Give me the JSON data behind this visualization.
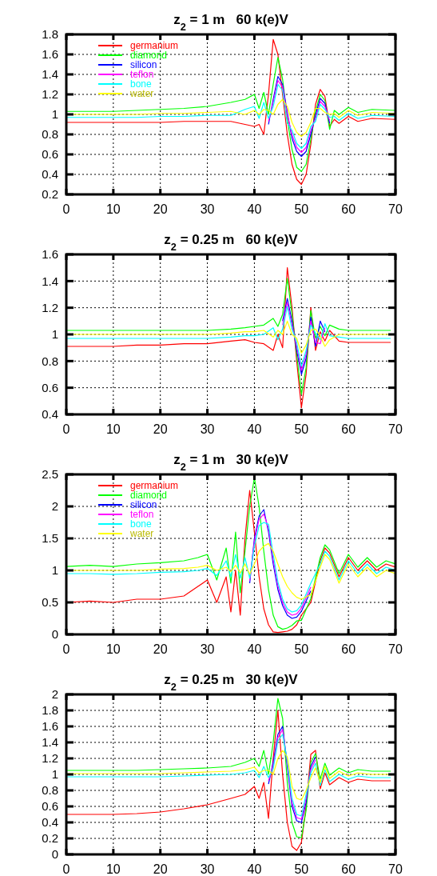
{
  "chart_data": [
    {
      "type": "line",
      "title": "z$_{2}$ = 1 m   60 k(e)V",
      "legend": "top left",
      "grid": true,
      "x": [
        0,
        5,
        10,
        15,
        20,
        25,
        30,
        35,
        38,
        40,
        41,
        42,
        43,
        44,
        45,
        46,
        47,
        48,
        49,
        50,
        51,
        52,
        53,
        54,
        55,
        56,
        57,
        58,
        60,
        62,
        65,
        70
      ],
      "xlim": [
        0,
        70
      ],
      "xticks": [
        0,
        10,
        20,
        30,
        40,
        50,
        60,
        70
      ],
      "ylim": [
        0.2,
        1.8
      ],
      "yticks": [
        0.2,
        0.4,
        0.6,
        0.8,
        1,
        1.2,
        1.4,
        1.6,
        1.8
      ],
      "series": [
        {
          "name": "germanium",
          "color": "#ff0000",
          "values": [
            0.92,
            0.92,
            0.92,
            0.92,
            0.92,
            0.93,
            0.93,
            0.93,
            0.9,
            0.88,
            0.9,
            0.8,
            1.2,
            1.75,
            1.6,
            1.2,
            0.8,
            0.5,
            0.35,
            0.3,
            0.4,
            0.7,
            1.1,
            1.25,
            1.18,
            0.88,
            0.95,
            0.91,
            0.98,
            0.93,
            0.96,
            0.95
          ]
        },
        {
          "name": "diamond",
          "color": "#00ff00",
          "values": [
            1.03,
            1.03,
            1.03,
            1.04,
            1.05,
            1.06,
            1.08,
            1.12,
            1.15,
            1.2,
            1.06,
            1.22,
            1.0,
            1.3,
            1.57,
            1.35,
            0.95,
            0.65,
            0.47,
            0.43,
            0.5,
            0.75,
            1.03,
            1.2,
            1.14,
            0.85,
            1.04,
            1.0,
            1.07,
            1.02,
            1.05,
            1.04
          ]
        },
        {
          "name": "silicon",
          "color": "#0000ff",
          "values": [
            null,
            null,
            null,
            null,
            null,
            null,
            null,
            null,
            null,
            null,
            null,
            null,
            0.9,
            1.15,
            1.38,
            1.3,
            1.02,
            0.76,
            0.63,
            0.58,
            0.63,
            0.8,
            0.99,
            1.16,
            1.11,
            0.91,
            null,
            null,
            null,
            null,
            null,
            null
          ]
        },
        {
          "name": "teflon",
          "color": "#ff00ff",
          "values": [
            null,
            null,
            null,
            null,
            null,
            null,
            null,
            null,
            null,
            null,
            null,
            null,
            0.93,
            1.12,
            1.34,
            1.27,
            0.99,
            0.8,
            0.67,
            0.62,
            0.67,
            0.84,
            0.96,
            1.13,
            1.08,
            0.94,
            null,
            null,
            null,
            null,
            null,
            null
          ]
        },
        {
          "name": "bone",
          "color": "#00ffff",
          "values": [
            0.97,
            0.97,
            0.97,
            0.97,
            0.98,
            0.98,
            0.99,
            0.99,
            1.05,
            1.08,
            0.96,
            1.12,
            0.96,
            1.08,
            1.3,
            1.24,
            0.91,
            0.84,
            0.71,
            0.66,
            0.71,
            0.88,
            0.93,
            1.1,
            1.05,
            0.97,
            0.98,
            0.94,
            1.01,
            0.96,
            0.99,
            0.98
          ]
        },
        {
          "name": "water",
          "color": "#ffff00",
          "values": [
            1.0,
            1.0,
            1.0,
            1.0,
            1.01,
            1.01,
            1.02,
            1.03,
            1.0,
            1.04,
            1.0,
            1.05,
            1.04,
            1.0,
            1.1,
            1.15,
            1.08,
            0.92,
            0.82,
            0.78,
            0.82,
            0.92,
            1.06,
            1.06,
            1.02,
            1.0,
            1.01,
            0.97,
            1.04,
            0.99,
            1.02,
            1.01
          ]
        }
      ]
    },
    {
      "type": "line",
      "title": "z$_{2}$ = 0.25 m   60 k(e)V",
      "grid": true,
      "x": [
        0,
        5,
        10,
        15,
        20,
        25,
        30,
        35,
        38,
        40,
        42,
        44,
        45,
        46,
        47,
        48,
        49,
        50,
        51,
        52,
        53,
        54,
        55,
        56,
        58,
        60,
        62,
        65,
        69
      ],
      "xlim": [
        0,
        70
      ],
      "xticks": [
        0,
        10,
        20,
        30,
        40,
        50,
        60,
        70
      ],
      "ylim": [
        0.4,
        1.6
      ],
      "yticks": [
        0.4,
        0.6,
        0.8,
        1,
        1.2,
        1.4,
        1.6
      ],
      "series": [
        {
          "color": "#ff0000",
          "values": [
            0.91,
            0.91,
            0.91,
            0.92,
            0.92,
            0.93,
            0.93,
            0.95,
            0.96,
            0.94,
            0.93,
            0.88,
            1.0,
            0.9,
            1.5,
            1.2,
            0.8,
            0.45,
            0.7,
            1.2,
            0.88,
            1.02,
            0.95,
            1.03,
            0.95,
            0.94,
            0.94,
            0.94,
            0.94
          ]
        },
        {
          "color": "#00ff00",
          "values": [
            1.03,
            1.03,
            1.03,
            1.03,
            1.03,
            1.03,
            1.03,
            1.04,
            1.05,
            1.06,
            1.07,
            1.12,
            1.06,
            1.15,
            1.42,
            1.15,
            0.85,
            0.55,
            0.75,
            1.18,
            0.97,
            1.06,
            0.99,
            1.07,
            1.04,
            1.03,
            1.03,
            1.03,
            1.03
          ]
        },
        {
          "color": "#0000ff",
          "values": [
            null,
            null,
            null,
            null,
            null,
            null,
            null,
            null,
            null,
            null,
            null,
            null,
            null,
            1.1,
            1.27,
            1.1,
            0.88,
            0.7,
            0.82,
            1.13,
            0.91,
            1.1,
            1.02,
            null,
            null,
            null,
            null,
            null,
            null
          ]
        },
        {
          "color": "#ff00ff",
          "values": [
            null,
            null,
            null,
            null,
            null,
            null,
            null,
            null,
            null,
            null,
            null,
            null,
            null,
            1.07,
            1.24,
            1.07,
            0.91,
            0.73,
            0.85,
            1.1,
            0.94,
            0.93,
            1.05,
            null,
            null,
            null,
            null,
            null,
            null
          ]
        },
        {
          "color": "#00ffff",
          "values": [
            0.97,
            0.97,
            0.97,
            0.97,
            0.97,
            0.97,
            0.97,
            0.98,
            0.99,
            0.99,
            1.0,
            1.05,
            0.96,
            1.04,
            1.21,
            1.04,
            0.94,
            0.76,
            0.88,
            1.07,
            1.01,
            0.96,
            1.08,
            0.99,
            0.98,
            0.97,
            0.97,
            0.97,
            0.97
          ]
        },
        {
          "color": "#ffff00",
          "values": [
            1.0,
            1.0,
            1.0,
            1.0,
            1.0,
            1.0,
            1.0,
            1.01,
            1.02,
            1.02,
            1.03,
            0.98,
            1.03,
            1.0,
            1.1,
            1.0,
            0.97,
            0.86,
            0.92,
            1.03,
            1.04,
            0.99,
            0.91,
            0.96,
            1.0,
            1.0,
            1.0,
            1.0,
            1.0
          ]
        }
      ]
    },
    {
      "type": "line",
      "title": "z$_{2}$ = 1 m   30 k(e)V",
      "legend": "top left",
      "grid": true,
      "x": [
        0,
        5,
        10,
        15,
        20,
        25,
        28,
        30,
        32,
        34,
        35,
        36,
        37,
        38,
        39,
        40,
        41,
        42,
        43,
        44,
        45,
        46,
        47,
        48,
        49,
        50,
        52,
        54,
        55,
        56,
        58,
        60,
        62,
        64,
        66,
        68,
        70
      ],
      "xlim": [
        0,
        70
      ],
      "xticks": [
        0,
        10,
        20,
        30,
        40,
        50,
        60,
        70
      ],
      "ylim": [
        0,
        2.5
      ],
      "yticks": [
        0,
        0.5,
        1,
        1.5,
        2,
        2.5
      ],
      "series": [
        {
          "name": "germanium",
          "color": "#ff0000",
          "values": [
            0.5,
            0.52,
            0.5,
            0.55,
            0.55,
            0.6,
            0.75,
            0.85,
            0.5,
            0.9,
            0.35,
            1.0,
            0.3,
            1.5,
            2.25,
            1.6,
            0.9,
            0.4,
            0.15,
            0.04,
            0.03,
            0.04,
            0.05,
            0.08,
            0.15,
            0.3,
            0.5,
            1.15,
            1.35,
            1.27,
            0.9,
            1.2,
            1.0,
            1.15,
            1.0,
            1.1,
            1.05
          ]
        },
        {
          "name": "diamond",
          "color": "#00ff00",
          "values": [
            1.06,
            1.08,
            1.06,
            1.1,
            1.12,
            1.15,
            1.2,
            1.25,
            0.85,
            1.35,
            0.8,
            1.6,
            0.65,
            1.3,
            2.0,
            2.45,
            2.0,
            1.3,
            0.7,
            0.3,
            0.12,
            0.08,
            0.1,
            0.14,
            0.21,
            0.22,
            0.56,
            1.2,
            1.4,
            1.32,
            0.95,
            1.25,
            1.05,
            1.2,
            1.05,
            1.15,
            1.1
          ]
        },
        {
          "name": "silicon",
          "color": "#0000ff",
          "values": [
            null,
            null,
            null,
            null,
            null,
            null,
            null,
            null,
            null,
            null,
            null,
            null,
            null,
            null,
            0.8,
            1.5,
            1.85,
            1.95,
            1.6,
            1.1,
            0.7,
            0.45,
            0.3,
            0.25,
            0.27,
            0.36,
            0.68,
            null,
            null,
            null,
            null,
            null,
            null,
            null,
            null,
            null,
            null
          ]
        },
        {
          "name": "teflon",
          "color": "#ff00ff",
          "values": [
            null,
            null,
            null,
            null,
            null,
            null,
            null,
            null,
            null,
            null,
            null,
            null,
            null,
            null,
            0.84,
            1.45,
            1.8,
            1.88,
            1.66,
            1.17,
            0.76,
            0.5,
            0.35,
            0.3,
            0.32,
            0.41,
            0.74,
            null,
            null,
            null,
            null,
            null,
            null,
            null,
            null,
            null,
            null
          ]
        },
        {
          "name": "bone",
          "color": "#00ffff",
          "values": [
            0.95,
            0.95,
            0.94,
            0.95,
            0.97,
            0.98,
            1.0,
            1.03,
            0.92,
            1.15,
            0.9,
            1.25,
            0.88,
            1.2,
            0.88,
            1.38,
            1.7,
            1.75,
            1.72,
            1.25,
            0.82,
            0.55,
            0.4,
            0.35,
            0.37,
            0.46,
            0.8,
            1.1,
            1.3,
            1.22,
            0.85,
            1.15,
            0.95,
            1.1,
            0.95,
            1.05,
            1.0
          ]
        },
        {
          "name": "water",
          "color": "#ffff00",
          "values": [
            1.0,
            1.0,
            1.0,
            1.0,
            1.02,
            1.03,
            1.05,
            1.08,
            1.0,
            1.05,
            0.98,
            1.08,
            0.96,
            1.1,
            0.94,
            1.1,
            1.3,
            1.38,
            1.42,
            1.3,
            1.1,
            0.9,
            0.75,
            0.65,
            0.58,
            0.55,
            0.62,
            1.05,
            1.25,
            1.17,
            0.8,
            1.1,
            0.9,
            1.05,
            0.9,
            1.0,
            0.95
          ]
        }
      ]
    },
    {
      "type": "line",
      "title": "z$_{2}$ = 0.25 m   30 k(e)V",
      "grid": true,
      "x": [
        0,
        5,
        10,
        15,
        20,
        25,
        30,
        35,
        38,
        40,
        41,
        42,
        43,
        44,
        45,
        46,
        47,
        48,
        49,
        50,
        51,
        52,
        53,
        54,
        55,
        56,
        58,
        60,
        62,
        65,
        69
      ],
      "xlim": [
        0,
        70
      ],
      "xticks": [
        0,
        10,
        20,
        30,
        40,
        50,
        60,
        70
      ],
      "ylim": [
        0,
        2
      ],
      "yticks": [
        0,
        0.2,
        0.4,
        0.6,
        0.8,
        1,
        1.2,
        1.4,
        1.6,
        1.8,
        2
      ],
      "series": [
        {
          "color": "#ff0000",
          "values": [
            0.5,
            0.5,
            0.5,
            0.51,
            0.53,
            0.57,
            0.62,
            0.7,
            0.75,
            0.85,
            0.7,
            0.9,
            0.45,
            1.2,
            1.8,
            1.0,
            0.4,
            0.1,
            0.05,
            0.15,
            0.6,
            1.25,
            1.3,
            0.82,
            1.02,
            0.87,
            0.96,
            0.9,
            0.94,
            0.92,
            0.92
          ]
        },
        {
          "color": "#00ff00",
          "values": [
            1.05,
            1.05,
            1.05,
            1.05,
            1.06,
            1.07,
            1.08,
            1.1,
            1.15,
            1.2,
            1.1,
            1.3,
            1.0,
            1.4,
            1.95,
            1.7,
            0.9,
            0.4,
            0.22,
            0.21,
            0.55,
            1.15,
            1.26,
            0.94,
            1.14,
            0.99,
            1.08,
            1.02,
            1.06,
            1.04,
            1.04
          ]
        },
        {
          "color": "#0000ff",
          "values": [
            null,
            null,
            null,
            null,
            null,
            null,
            null,
            null,
            null,
            null,
            null,
            null,
            0.88,
            1.15,
            1.5,
            1.6,
            1.1,
            0.6,
            0.42,
            0.4,
            0.65,
            1.1,
            1.22,
            null,
            null,
            null,
            null,
            null,
            null,
            null,
            null
          ]
        },
        {
          "color": "#ff00ff",
          "values": [
            null,
            null,
            null,
            null,
            null,
            null,
            null,
            null,
            null,
            null,
            null,
            null,
            0.92,
            1.11,
            1.46,
            1.56,
            1.14,
            0.65,
            0.46,
            0.44,
            0.7,
            1.06,
            1.18,
            null,
            null,
            null,
            null,
            null,
            null,
            null,
            null
          ]
        },
        {
          "color": "#00ffff",
          "values": [
            0.97,
            0.97,
            0.97,
            0.97,
            0.97,
            0.98,
            0.99,
            1.0,
            1.02,
            1.05,
            0.96,
            1.1,
            0.96,
            1.07,
            1.42,
            1.5,
            1.18,
            0.7,
            0.5,
            0.48,
            0.75,
            1.02,
            1.14,
            0.86,
            1.06,
            0.91,
            1.0,
            0.94,
            0.98,
            0.96,
            0.96
          ]
        },
        {
          "color": "#ffff00",
          "values": [
            1.01,
            1.01,
            1.01,
            1.01,
            1.01,
            1.02,
            1.03,
            1.04,
            1.06,
            1.09,
            1.02,
            1.05,
            1.05,
            1.0,
            1.2,
            1.3,
            1.22,
            0.85,
            0.7,
            0.68,
            0.8,
            0.96,
            1.08,
            0.9,
            1.1,
            0.95,
            1.04,
            0.98,
            1.02,
            1.0,
            1.0
          ]
        }
      ]
    }
  ]
}
